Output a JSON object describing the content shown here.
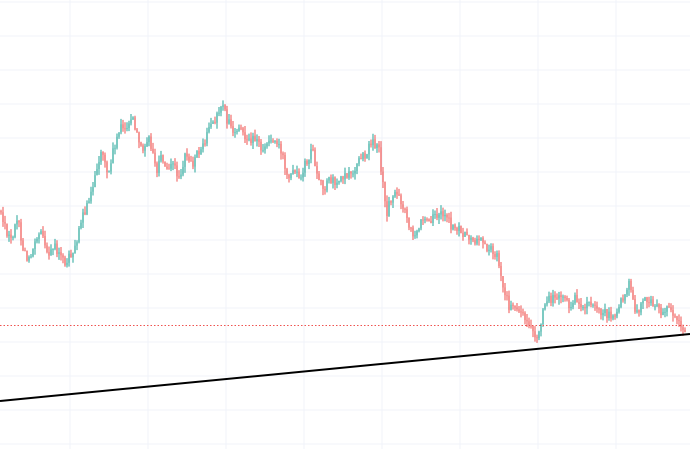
{
  "chart_data": {
    "type": "candlestick",
    "title": "",
    "xlabel": "",
    "ylabel": "",
    "ylim": [
      0,
      100
    ],
    "grid": true,
    "colors": {
      "up": "#26a69a",
      "down": "#ef5350",
      "grid": "#f0f3fa",
      "price_line": "#ef5350",
      "trendline": "#000000",
      "background": "#ffffff"
    },
    "price_series": [
      [
        0,
        53
      ],
      [
        6,
        49
      ],
      [
        12,
        47
      ],
      [
        18,
        51
      ],
      [
        24,
        44
      ],
      [
        30,
        42
      ],
      [
        36,
        46
      ],
      [
        42,
        48
      ],
      [
        48,
        44
      ],
      [
        54,
        45
      ],
      [
        60,
        43
      ],
      [
        66,
        41
      ],
      [
        72,
        44
      ],
      [
        78,
        47
      ],
      [
        84,
        53
      ],
      [
        90,
        55
      ],
      [
        96,
        63
      ],
      [
        102,
        66
      ],
      [
        108,
        61
      ],
      [
        114,
        67
      ],
      [
        120,
        71
      ],
      [
        126,
        72
      ],
      [
        132,
        74
      ],
      [
        138,
        70
      ],
      [
        144,
        66
      ],
      [
        150,
        69
      ],
      [
        156,
        62
      ],
      [
        162,
        65
      ],
      [
        168,
        61
      ],
      [
        174,
        64
      ],
      [
        180,
        59
      ],
      [
        186,
        66
      ],
      [
        192,
        63
      ],
      [
        198,
        66
      ],
      [
        204,
        68
      ],
      [
        210,
        72
      ],
      [
        216,
        74
      ],
      [
        222,
        76
      ],
      [
        228,
        73
      ],
      [
        234,
        70
      ],
      [
        240,
        71
      ],
      [
        246,
        70
      ],
      [
        252,
        69
      ],
      [
        258,
        68
      ],
      [
        264,
        67
      ],
      [
        270,
        69
      ],
      [
        276,
        68
      ],
      [
        282,
        66
      ],
      [
        288,
        61
      ],
      [
        294,
        63
      ],
      [
        300,
        61
      ],
      [
        306,
        64
      ],
      [
        312,
        67
      ],
      [
        318,
        61
      ],
      [
        324,
        58
      ],
      [
        330,
        60
      ],
      [
        336,
        59
      ],
      [
        342,
        60
      ],
      [
        348,
        61
      ],
      [
        354,
        62
      ],
      [
        360,
        65
      ],
      [
        366,
        66
      ],
      [
        372,
        68
      ],
      [
        378,
        68
      ],
      [
        382,
        61
      ],
      [
        386,
        52
      ],
      [
        390,
        55
      ],
      [
        396,
        57
      ],
      [
        402,
        55
      ],
      [
        408,
        51
      ],
      [
        414,
        48
      ],
      [
        420,
        50
      ],
      [
        426,
        50
      ],
      [
        432,
        51
      ],
      [
        438,
        52
      ],
      [
        444,
        53
      ],
      [
        450,
        50
      ],
      [
        456,
        49
      ],
      [
        462,
        48
      ],
      [
        468,
        47
      ],
      [
        474,
        46
      ],
      [
        480,
        47
      ],
      [
        486,
        45
      ],
      [
        492,
        44
      ],
      [
        498,
        43
      ],
      [
        502,
        38
      ],
      [
        508,
        32
      ],
      [
        514,
        31
      ],
      [
        520,
        31
      ],
      [
        526,
        28
      ],
      [
        532,
        26
      ],
      [
        536,
        23
      ],
      [
        540,
        28
      ],
      [
        546,
        32
      ],
      [
        552,
        34
      ],
      [
        558,
        33
      ],
      [
        564,
        34
      ],
      [
        570,
        32
      ],
      [
        576,
        34
      ],
      [
        582,
        31
      ],
      [
        588,
        32
      ],
      [
        594,
        31
      ],
      [
        600,
        30
      ],
      [
        606,
        30
      ],
      [
        612,
        29
      ],
      [
        618,
        31
      ],
      [
        624,
        34
      ],
      [
        628,
        37
      ],
      [
        632,
        34
      ],
      [
        636,
        31
      ],
      [
        642,
        32
      ],
      [
        648,
        34
      ],
      [
        654,
        32
      ],
      [
        660,
        31
      ],
      [
        666,
        31
      ],
      [
        672,
        30
      ],
      [
        678,
        28
      ],
      [
        684,
        26
      ]
    ],
    "current_price": 27.5,
    "trendline": [
      [
        0,
        10.7
      ],
      [
        690,
        25.6
      ]
    ]
  }
}
